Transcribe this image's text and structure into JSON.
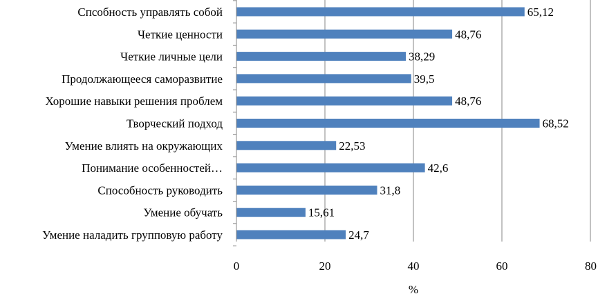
{
  "chart_data": {
    "type": "bar",
    "orientation": "horizontal",
    "categories": [
      "Спсобность управлять собой",
      "Четкие ценности",
      "Четкие личные цели",
      "Продолжающееся саморазвитие",
      "Хорошие навыки решения проблем",
      "Творческий подход",
      "Умение влиять на окружающих",
      "Понимание особенностей…",
      "Способность руководить",
      "Умение обучать",
      "Умение наладить групповую работу"
    ],
    "values": [
      65.12,
      48.76,
      38.29,
      39.5,
      48.76,
      68.52,
      22.53,
      42.6,
      31.8,
      15.61,
      24.7
    ],
    "value_labels": [
      "65,12",
      "48,76",
      "38,29",
      "39,5",
      "48,76",
      "68,52",
      "22,53",
      "42,6",
      "31,8",
      "15,61",
      "24,7"
    ],
    "xlim": [
      0,
      80
    ],
    "xticks": [
      0,
      20,
      40,
      60,
      80
    ],
    "xtick_labels": [
      "0",
      "20",
      "40",
      "60",
      "80"
    ],
    "xlabel": "%",
    "grid": "vertical",
    "legend": "none",
    "bar_color": "#4F81BD",
    "grid_color": "#868686"
  }
}
